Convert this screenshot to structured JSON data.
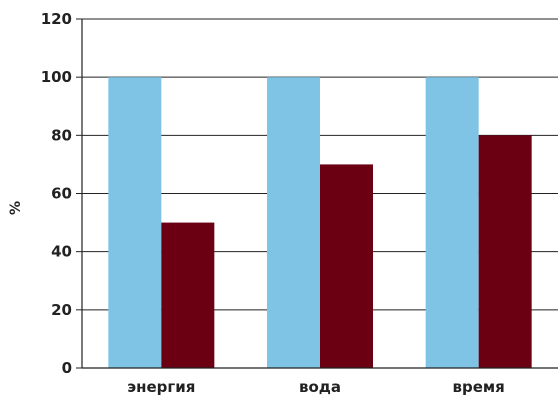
{
  "chart_data": {
    "type": "bar",
    "title": "",
    "xlabel": "",
    "ylabel": "%",
    "categories": [
      "энергия",
      "вода",
      "время"
    ],
    "series": [
      {
        "values": [
          100,
          100,
          100
        ],
        "color": "#7fc4e4"
      },
      {
        "values": [
          50,
          70,
          80
        ],
        "color": "#6a0012"
      }
    ],
    "ylim": [
      0,
      120
    ],
    "yticks": [
      0,
      20,
      40,
      60,
      80,
      100,
      120
    ],
    "grid": true,
    "legend": "none"
  }
}
